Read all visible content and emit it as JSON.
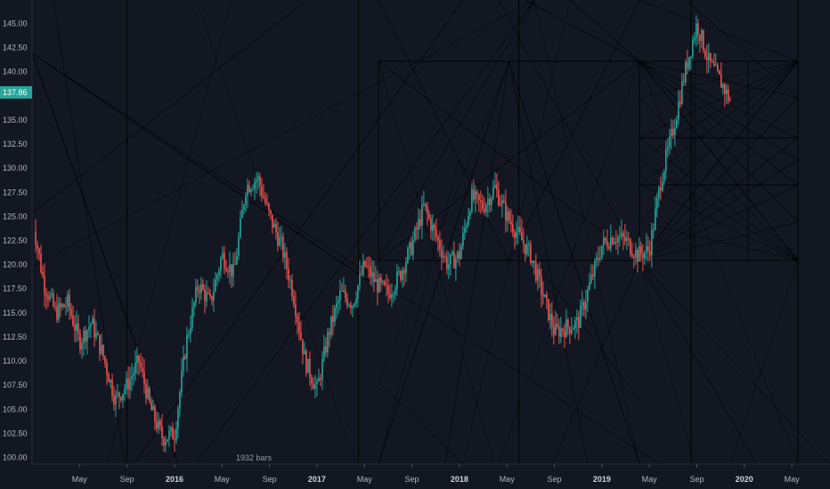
{
  "chart_data": {
    "type": "candlestick",
    "ylim": [
      98.5,
      147.5
    ],
    "y_ticks": [
      "100.00",
      "102.50",
      "105.00",
      "107.50",
      "110.00",
      "112.50",
      "115.00",
      "117.50",
      "120.00",
      "122.50",
      "125.00",
      "127.50",
      "130.00",
      "132.50",
      "135.00",
      "137.50",
      "140.00",
      "142.50",
      "145.00"
    ],
    "x_ticks": [
      {
        "label": "May",
        "bold": false
      },
      {
        "label": "Sep",
        "bold": false
      },
      {
        "label": "2016",
        "bold": true
      },
      {
        "label": "May",
        "bold": false
      },
      {
        "label": "Sep",
        "bold": false
      },
      {
        "label": "2017",
        "bold": true
      },
      {
        "label": "May",
        "bold": false
      },
      {
        "label": "Sep",
        "bold": false
      },
      {
        "label": "2018",
        "bold": true
      },
      {
        "label": "May",
        "bold": false
      },
      {
        "label": "Sep",
        "bold": false
      },
      {
        "label": "2019",
        "bold": true
      },
      {
        "label": "May",
        "bold": false
      },
      {
        "label": "Sep",
        "bold": false
      },
      {
        "label": "2020",
        "bold": true
      },
      {
        "label": "May",
        "bold": false
      }
    ],
    "x_range": [
      "2015-01",
      "2020-07"
    ],
    "price_path": [
      [
        "2015-01",
        125.0
      ],
      [
        "2015-02",
        118.0
      ],
      [
        "2015-03",
        115.0
      ],
      [
        "2015-04",
        116.0
      ],
      [
        "2015-05",
        112.0
      ],
      [
        "2015-06",
        114.0
      ],
      [
        "2015-07",
        110.5
      ],
      [
        "2015-08",
        106.0
      ],
      [
        "2015-09",
        107.5
      ],
      [
        "2015-10",
        110.0
      ],
      [
        "2015-11",
        105.0
      ],
      [
        "2015-12",
        102.0
      ],
      [
        "2016-01",
        102.5
      ],
      [
        "2016-02",
        112.0
      ],
      [
        "2016-03",
        118.0
      ],
      [
        "2016-04",
        116.0
      ],
      [
        "2016-05",
        121.0
      ],
      [
        "2016-06",
        119.0
      ],
      [
        "2016-07",
        128.0
      ],
      [
        "2016-08",
        129.0
      ],
      [
        "2016-09",
        125.0
      ],
      [
        "2016-10",
        122.0
      ],
      [
        "2016-11",
        117.0
      ],
      [
        "2016-12",
        110.0
      ],
      [
        "2017-01",
        107.0
      ],
      [
        "2017-02",
        113.0
      ],
      [
        "2017-03",
        117.0
      ],
      [
        "2017-04",
        116.0
      ],
      [
        "2017-05",
        120.0
      ],
      [
        "2017-06",
        118.0
      ],
      [
        "2017-07",
        117.0
      ],
      [
        "2017-08",
        119.0
      ],
      [
        "2017-09",
        122.0
      ],
      [
        "2017-10",
        126.0
      ],
      [
        "2017-11",
        123.0
      ],
      [
        "2017-12",
        120.0
      ],
      [
        "2018-01",
        121.0
      ],
      [
        "2018-02",
        127.0
      ],
      [
        "2018-03",
        126.0
      ],
      [
        "2018-04",
        128.0
      ],
      [
        "2018-05",
        125.0
      ],
      [
        "2018-06",
        123.0
      ],
      [
        "2018-07",
        121.0
      ],
      [
        "2018-08",
        117.0
      ],
      [
        "2018-09",
        113.0
      ],
      [
        "2018-10",
        113.5
      ],
      [
        "2018-11",
        114.0
      ],
      [
        "2018-12",
        118.0
      ],
      [
        "2019-01",
        122.0
      ],
      [
        "2019-02",
        123.0
      ],
      [
        "2019-03",
        122.5
      ],
      [
        "2019-04",
        121.0
      ],
      [
        "2019-05",
        121.5
      ],
      [
        "2019-06",
        129.0
      ],
      [
        "2019-07",
        134.0
      ],
      [
        "2019-08",
        140.0
      ],
      [
        "2019-09",
        145.0
      ],
      [
        "2019-10",
        141.0
      ],
      [
        "2019-11",
        139.0
      ],
      [
        "2019-12",
        136.5
      ]
    ],
    "bars_count_label": "1932 bars",
    "last_price": "137.86",
    "last_price_color": "#26a69a",
    "up_color": "#26a69a",
    "down_color": "#ef5350",
    "background": "#131722",
    "grid": false
  }
}
